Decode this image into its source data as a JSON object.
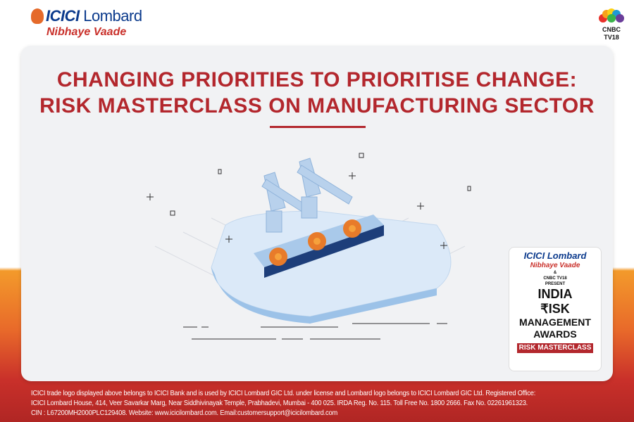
{
  "brand": {
    "name_part1": "ICICI",
    "name_part2": "Lombard",
    "tagline": "Nibhaye Vaade"
  },
  "partner": {
    "line1": "CNBC",
    "line2": "TV18"
  },
  "headline": {
    "line1": "CHANGING PRIORITIES TO PRIORITISE CHANGE:",
    "line2": "RISK MASTERCLASS ON MANUFACTURING SECTOR"
  },
  "colors": {
    "accent": "#b3272d",
    "brand_blue": "#0b3a8c",
    "orange": "#e56a2a"
  },
  "badge": {
    "brand1": "ICICI",
    "brand2": "Lombard",
    "tagline": "Nibhaye Vaade",
    "amp": "&",
    "cnbc": "CNBC TV18",
    "present": "PRESENT",
    "l1": "INDIA",
    "l2": "₹ISK",
    "l3": "MANAGEMENT",
    "l4": "AWARDS",
    "tag": "RISK MASTERCLASS"
  },
  "footer": {
    "line1": "ICICI trade logo displayed above belongs to ICICI Bank and is used by ICICI Lombard GIC Ltd. under license and Lombard logo belongs to ICICI Lombard GIC Ltd. Registered Office:",
    "line2": "ICICI Lombard House, 414, Veer Savarkar Marg, Near Siddhivinayak Temple, Prabhadevi, Mumbai - 400 025. IRDA Reg. No. 115. Toll Free No. 1800 2666. Fax No. 02261961323.",
    "line3": "CIN : L67200MH2000PLC129408. Website: www.icicilombard.com. Email:customersupport@icicilombard.com"
  }
}
